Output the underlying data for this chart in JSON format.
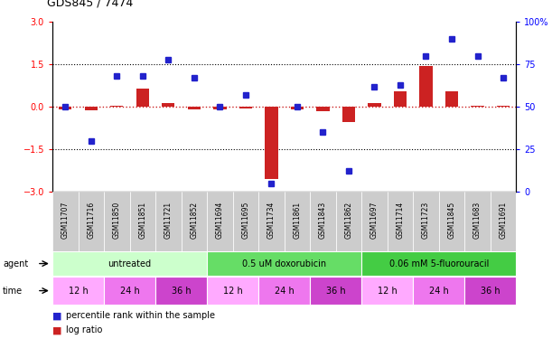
{
  "title": "GDS845 / 7474",
  "samples": [
    "GSM11707",
    "GSM11716",
    "GSM11850",
    "GSM11851",
    "GSM11721",
    "GSM11852",
    "GSM11694",
    "GSM11695",
    "GSM11734",
    "GSM11861",
    "GSM11843",
    "GSM11862",
    "GSM11697",
    "GSM11714",
    "GSM11723",
    "GSM11845",
    "GSM11683",
    "GSM11691"
  ],
  "log_ratio": [
    -0.08,
    -0.12,
    0.05,
    0.65,
    0.12,
    -0.08,
    -0.1,
    -0.05,
    -2.55,
    -0.08,
    -0.15,
    -0.55,
    0.12,
    0.55,
    1.45,
    0.55,
    0.05,
    0.05
  ],
  "percentile": [
    50,
    30,
    68,
    68,
    78,
    67,
    50,
    57,
    5,
    50,
    35,
    12,
    62,
    63,
    80,
    90,
    80,
    67
  ],
  "agent_groups": [
    {
      "label": "untreated",
      "start": 0,
      "end": 6,
      "color": "#ccffcc"
    },
    {
      "label": "0.5 uM doxorubicin",
      "start": 6,
      "end": 12,
      "color": "#66dd66"
    },
    {
      "label": "0.06 mM 5-fluorouracil",
      "start": 12,
      "end": 18,
      "color": "#44cc44"
    }
  ],
  "time_groups": [
    {
      "label": "12 h",
      "start": 0,
      "end": 2,
      "color": "#ffaaff"
    },
    {
      "label": "24 h",
      "start": 2,
      "end": 4,
      "color": "#ee77ee"
    },
    {
      "label": "36 h",
      "start": 4,
      "end": 6,
      "color": "#cc44cc"
    },
    {
      "label": "12 h",
      "start": 6,
      "end": 8,
      "color": "#ffaaff"
    },
    {
      "label": "24 h",
      "start": 8,
      "end": 10,
      "color": "#ee77ee"
    },
    {
      "label": "36 h",
      "start": 10,
      "end": 12,
      "color": "#cc44cc"
    },
    {
      "label": "12 h",
      "start": 12,
      "end": 14,
      "color": "#ffaaff"
    },
    {
      "label": "24 h",
      "start": 14,
      "end": 16,
      "color": "#ee77ee"
    },
    {
      "label": "36 h",
      "start": 16,
      "end": 18,
      "color": "#cc44cc"
    }
  ],
  "bar_color": "#cc2222",
  "dot_color": "#2222cc",
  "zero_line_color": "#cc2222",
  "ylim_left": [
    -3,
    3
  ],
  "ylim_right": [
    0,
    100
  ],
  "yticks_left": [
    -3,
    -1.5,
    0,
    1.5,
    3
  ],
  "yticks_right": [
    0,
    25,
    50,
    75,
    100
  ],
  "hlines": [
    -1.5,
    0,
    1.5
  ],
  "background_color": "#ffffff",
  "sample_bg_color": "#cccccc"
}
